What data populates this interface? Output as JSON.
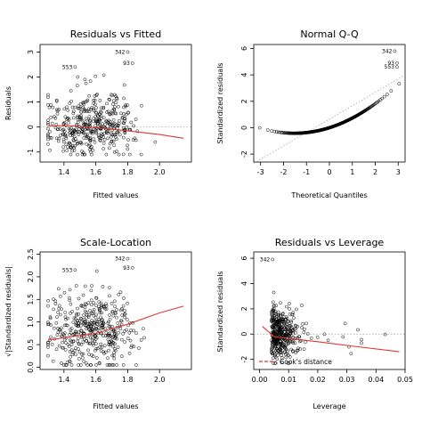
{
  "chart_data": [
    {
      "type": "scatter",
      "title": "Residuals vs Fitted",
      "xlabel": "Fitted values",
      "ylabel": "Residuals",
      "xlim": [
        1.25,
        2.2
      ],
      "ylim": [
        -1.4,
        3.3
      ],
      "xticks": [
        "1.4",
        "1.6",
        "1.8",
        "2.0"
      ],
      "xtick_values": [
        1.4,
        1.6,
        1.8,
        2.0
      ],
      "yticks": [
        "-1",
        "0",
        "1",
        "2",
        "3"
      ],
      "ytick_values": [
        -1,
        0,
        1,
        2,
        3
      ],
      "reference_line": 0,
      "smooth": [
        [
          1.3,
          0.05
        ],
        [
          1.45,
          0.05
        ],
        [
          1.6,
          -0.02
        ],
        [
          1.8,
          -0.15
        ],
        [
          2.0,
          -0.3
        ],
        [
          2.15,
          -0.45
        ]
      ],
      "annotations": [
        {
          "label": "342",
          "x": 1.8,
          "y": 3.0
        },
        {
          "label": "553",
          "x": 1.47,
          "y": 2.4
        },
        {
          "label": "93",
          "x": 1.83,
          "y": 2.55
        }
      ],
      "n_points": 420,
      "point_cloud": {
        "x_center": 1.57,
        "x_spread": 0.14,
        "y_center": 0.0,
        "y_spread": 0.55,
        "x_min": 1.3,
        "x_max": 2.15,
        "y_min": -1.1,
        "y_max": 2.4,
        "y_skew": 0.55
      }
    },
    {
      "type": "scatter",
      "title": "Normal Q-Q",
      "xlabel": "Theoretical Quantiles",
      "ylabel": "Standardized residuals",
      "xlim": [
        -3.3,
        3.3
      ],
      "ylim": [
        -2.6,
        6.3
      ],
      "xticks": [
        "-3",
        "-2",
        "-1",
        "0",
        "1",
        "2",
        "3"
      ],
      "xtick_values": [
        -3,
        -2,
        -1,
        0,
        1,
        2,
        3
      ],
      "yticks": [
        "-2",
        "0",
        "2",
        "4",
        "6"
      ],
      "ytick_values": [
        -2,
        0,
        2,
        4,
        6
      ],
      "reference_line_points": [
        [
          -3.3,
          -2.7
        ],
        [
          3.3,
          4.0
        ]
      ],
      "annotations": [
        {
          "label": "342",
          "x": 2.85,
          "y": 5.8
        },
        {
          "label": "93",
          "x": 2.95,
          "y": 4.9
        },
        {
          "label": "553",
          "x": 2.95,
          "y": 4.6
        }
      ],
      "n_points": 420,
      "qq_shape": {
        "low_tail": -2.3,
        "center_slope": 0.55,
        "curve": 0.18
      }
    },
    {
      "type": "scatter",
      "title": "Scale-Location",
      "xlabel": "Fitted values",
      "ylabel": "√|Standardized residuals|",
      "xlim": [
        1.25,
        2.2
      ],
      "ylim": [
        -0.05,
        2.55
      ],
      "xticks": [
        "1.4",
        "1.6",
        "1.8",
        "2.0"
      ],
      "xtick_values": [
        1.4,
        1.6,
        1.8,
        2.0
      ],
      "yticks": [
        "0.0",
        "0.5",
        "1.0",
        "1.5",
        "2.0",
        "2.5"
      ],
      "ytick_values": [
        0.0,
        0.5,
        1.0,
        1.5,
        2.0,
        2.5
      ],
      "smooth": [
        [
          1.3,
          0.6
        ],
        [
          1.5,
          0.7
        ],
        [
          1.6,
          0.75
        ],
        [
          1.8,
          0.95
        ],
        [
          2.0,
          1.2
        ],
        [
          2.15,
          1.35
        ]
      ],
      "annotations": [
        {
          "label": "342",
          "x": 1.8,
          "y": 2.4
        },
        {
          "label": "553",
          "x": 1.47,
          "y": 2.15
        },
        {
          "label": "93",
          "x": 1.83,
          "y": 2.2
        }
      ],
      "n_points": 420,
      "point_cloud": {
        "x_center": 1.57,
        "x_spread": 0.14,
        "y_center": 0.8,
        "y_spread": 0.42,
        "x_min": 1.3,
        "x_max": 2.15,
        "y_min": 0.05,
        "y_max": 2.3
      }
    },
    {
      "type": "scatter",
      "title": "Residuals vs Leverage",
      "xlabel": "Leverage",
      "ylabel": "Standardized residuals",
      "xlim": [
        -0.002,
        0.05
      ],
      "ylim": [
        -2.8,
        6.5
      ],
      "xticks": [
        "0.00",
        "0.01",
        "0.02",
        "0.03",
        "0.04",
        "0.05"
      ],
      "xtick_values": [
        0.0,
        0.01,
        0.02,
        0.03,
        0.04,
        0.05
      ],
      "yticks": [
        "-2",
        "0",
        "2",
        "4",
        "6"
      ],
      "ytick_values": [
        -2,
        0,
        2,
        4,
        6
      ],
      "reference_line": 0,
      "smooth": [
        [
          0.001,
          0.6
        ],
        [
          0.005,
          -0.2
        ],
        [
          0.01,
          -0.35
        ],
        [
          0.02,
          -0.6
        ],
        [
          0.03,
          -0.9
        ],
        [
          0.048,
          -1.4
        ]
      ],
      "annotations": [
        {
          "label": "342",
          "x": 0.0045,
          "y": 5.9
        }
      ],
      "legend": {
        "label": "Cook's distance",
        "position": "bottom-left",
        "color": "#e5382f",
        "style": "dashed"
      },
      "n_points": 420,
      "point_cloud": {
        "x_center": 0.004,
        "x_spread": 0.004,
        "y_center": 0.0,
        "y_spread": 1.05,
        "x_min": 0.0005,
        "x_max": 0.048,
        "y_min": -2.3,
        "y_max": 5.9
      }
    }
  ],
  "colors": {
    "points": "#000000",
    "smooth": "#d93b33",
    "reference": "#9a9a9a",
    "cooks": "#e5382f"
  }
}
